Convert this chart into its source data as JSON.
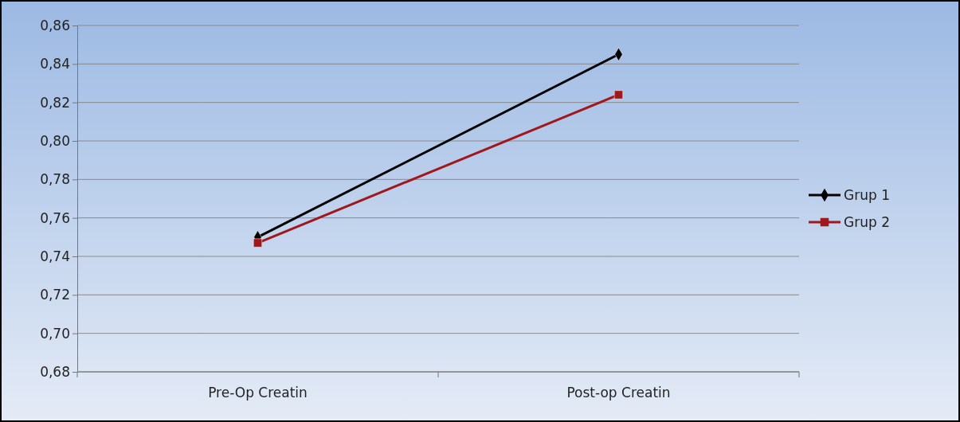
{
  "chart_data": {
    "type": "line",
    "categories": [
      "Pre-Op Creatin",
      "Post-op Creatin"
    ],
    "series": [
      {
        "name": "Grup 1",
        "color": "#000000",
        "values": [
          0.75,
          0.845
        ],
        "marker": "diamond"
      },
      {
        "name": "Grup 2",
        "color": "#a0171c",
        "values": [
          0.747,
          0.824
        ],
        "marker": "square"
      }
    ],
    "ylim": [
      0.68,
      0.86
    ],
    "yticks": [
      {
        "value": 0.68,
        "label": "0,68"
      },
      {
        "value": 0.7,
        "label": "0,70"
      },
      {
        "value": 0.72,
        "label": "0,72"
      },
      {
        "value": 0.74,
        "label": "0,74"
      },
      {
        "value": 0.76,
        "label": "0,76"
      },
      {
        "value": 0.78,
        "label": "0,78"
      },
      {
        "value": 0.8,
        "label": "0,80"
      },
      {
        "value": 0.82,
        "label": "0,82"
      },
      {
        "value": 0.84,
        "label": "0,84"
      },
      {
        "value": 0.86,
        "label": "0,86"
      }
    ],
    "grid": "y",
    "legend": "right",
    "line_style": "solid"
  }
}
